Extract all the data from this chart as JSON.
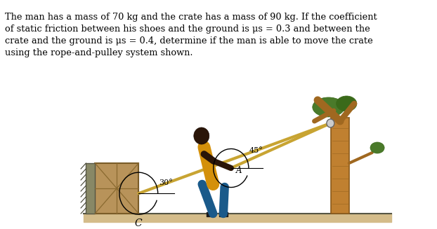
{
  "bg_color": "#ffffff",
  "rope_color": "#c8a432",
  "ground_fill_color": "#d4bc8a",
  "ground_edge_color": "#b0a080",
  "crate_face_color": "#b8935a",
  "crate_edge_color": "#7a5c28",
  "crate_dark_color": "#8a6a30",
  "wall_hatch_color": "#555555",
  "tree_trunk_color": "#c08030",
  "tree_trunk_dark": "#8b5a1a",
  "tree_branch_color": "#a06820",
  "tree_leaf_color": "#4a7a2a",
  "tree_leaf2_color": "#3a6a1a",
  "man_skin": "#2a1508",
  "man_shirt": "#d4900a",
  "man_pants": "#1a5a8a",
  "man_shoe": "#1a1a1a",
  "angle_30_label": "30°",
  "angle_45_label": "45°",
  "point_A_label": "A",
  "point_C_label": "C",
  "text_line1": "The man has a mass of 70 kg and the crate has a mass of 90 kg. If the coefficient",
  "text_line2": "of static friction between his shoes and the ground is μs = 0.3 and between the",
  "text_line3": "crate and the ground is μs = 0.4, determine if the man is able to move the crate",
  "text_line4": "using the rope-and-pulley system shown."
}
